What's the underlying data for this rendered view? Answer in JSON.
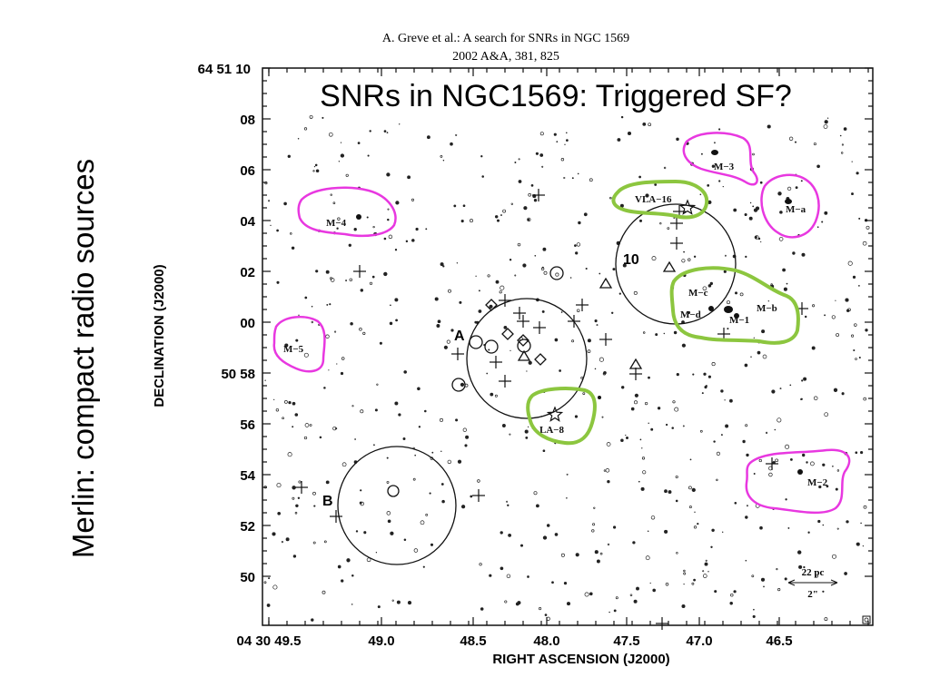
{
  "header": {
    "citation": "A. Greve et al.: A search for SNRs in NGC 1569",
    "reference": "2002 A&A, 381, 825"
  },
  "slide_title": "SNRs in NGC1569: Triggered SF?",
  "side_title": "Merlin: compact radio sources",
  "axes": {
    "ylabel": "DECLINATION (J2000)",
    "xlabel": "RIGHT ASCENSION (J2000)",
    "y_ticks": [
      {
        "label": "64 51 10",
        "dec_min": 10
      },
      {
        "label": "08",
        "dec_min": 8
      },
      {
        "label": "06",
        "dec_min": 6
      },
      {
        "label": "04",
        "dec_min": 4
      },
      {
        "label": "02",
        "dec_min": 2
      },
      {
        "label": "00",
        "dec_min": 0
      },
      {
        "label": "50 58",
        "dec_min": -2
      },
      {
        "label": "56",
        "dec_min": -4
      },
      {
        "label": "54",
        "dec_min": -6
      },
      {
        "label": "52",
        "dec_min": -8
      },
      {
        "label": "50",
        "dec_min": -10
      }
    ],
    "x_ticks": [
      {
        "label": "04 30 49.5",
        "ra": 49.5
      },
      {
        "label": "49.0",
        "ra": 49.0
      },
      {
        "label": "48.5",
        "ra": 48.5
      },
      {
        "label": "48.0",
        "ra": 48.0
      },
      {
        "label": "47.5",
        "ra": 47.5
      },
      {
        "label": "47.0",
        "ra": 47.0
      },
      {
        "label": "46.5",
        "ra": 46.5
      }
    ]
  },
  "region_labels": {
    "A": "A",
    "B": "B",
    "ten": "10"
  },
  "sources": {
    "M3": "M−3",
    "Ma": "M−a",
    "M4": "M−4",
    "VLA16": "VLA−16",
    "Mc": "M−c",
    "Md": "M−d",
    "Mb": "M−b",
    "M1": "M−1",
    "M5": "M−5",
    "LA8": "LA−8",
    "M2": "M−2"
  },
  "scale_bar": {
    "pc": "22 pc",
    "arcsec": "2\""
  },
  "colors": {
    "magenta": "#e838e0",
    "green": "#8cc63f",
    "ink": "#111111"
  }
}
